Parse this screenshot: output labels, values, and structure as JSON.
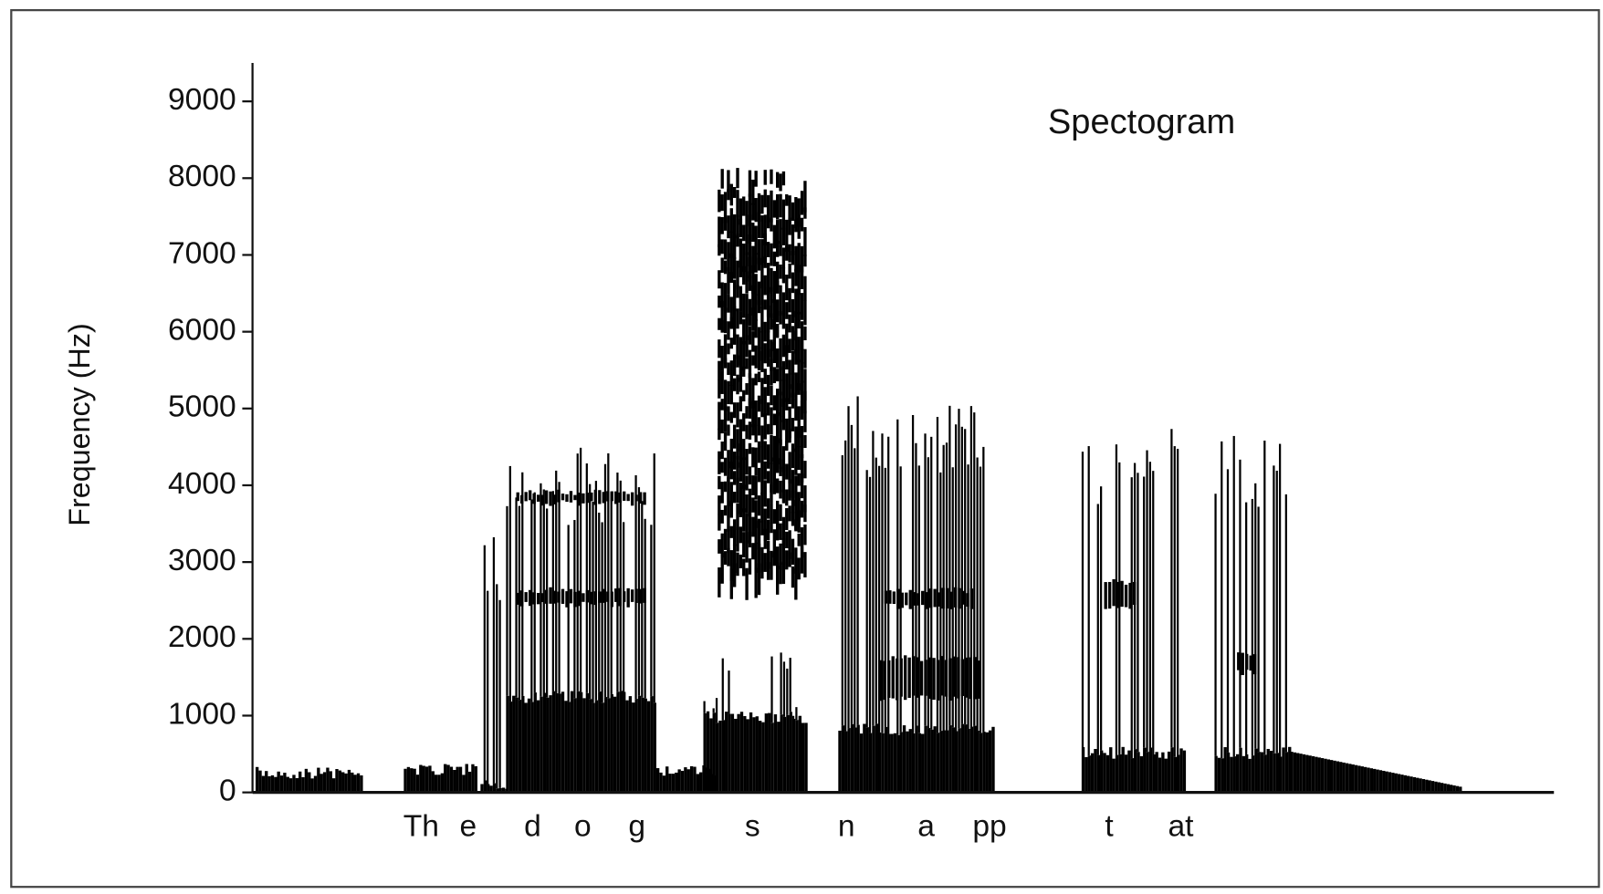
{
  "chart_data": {
    "type": "spectrogram",
    "title": "Spectogram",
    "y_label": "Frequency (Hz)",
    "ylim": [
      0,
      9500
    ],
    "yticks": [
      0,
      1000,
      2000,
      3000,
      4000,
      5000,
      6000,
      7000,
      8000,
      9000
    ],
    "segment_labels": [
      "Th",
      "e",
      "d",
      "o",
      "g",
      "s",
      "n",
      "a",
      "pp",
      "t",
      "at"
    ],
    "color": "#000000"
  }
}
